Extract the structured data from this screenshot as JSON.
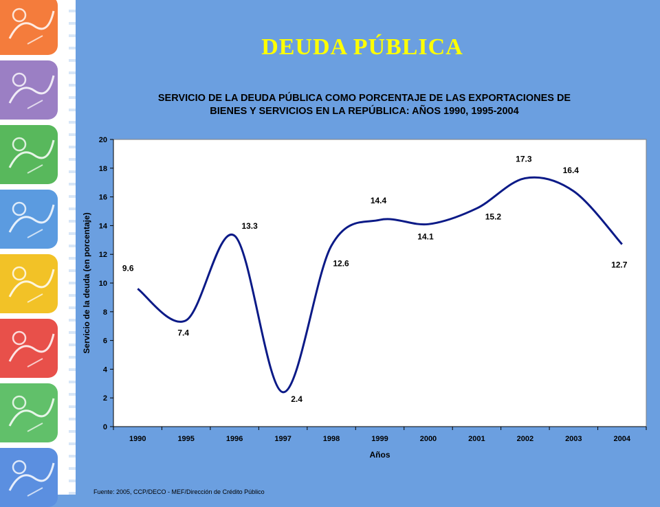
{
  "slide": {
    "title": "DEUDA PÚBLICA"
  },
  "colors": {
    "background": "#6b9fe0",
    "title": "#ffff00",
    "line": "#0b1a87",
    "tiles": [
      "#f47c3c",
      "#9b7fc4",
      "#58b85c",
      "#5b9be0",
      "#f2c227",
      "#e8504a",
      "#61c06a",
      "#5b8fe0"
    ]
  },
  "chart_data": {
    "type": "line",
    "title": "SERVICIO DE LA DEUDA PÚBLICA COMO PORCENTAJE DE LAS EXPORTACIONES DE BIENES Y SERVICIOS EN LA REPÚBLICA: AÑOS 1990, 1995-2004",
    "title_lines": [
      "SERVICIO DE LA DEUDA PÚBLICA COMO PORCENTAJE DE LAS EXPORTACIONES DE",
      "BIENES Y SERVICIOS EN LA REPÚBLICA: AÑOS 1990, 1995-2004"
    ],
    "xlabel": "Años",
    "ylabel": "Servicio de la deuda (en porcentaje)",
    "categories": [
      "1990",
      "1995",
      "1996",
      "1997",
      "1998",
      "1999",
      "2000",
      "2001",
      "2002",
      "2003",
      "2004"
    ],
    "values": [
      9.6,
      7.4,
      13.3,
      2.4,
      12.6,
      14.4,
      14.1,
      15.2,
      17.3,
      16.4,
      12.7
    ],
    "ylim": [
      0,
      20
    ],
    "yticks": [
      0,
      2,
      4,
      6,
      8,
      10,
      12,
      14,
      16,
      18,
      20
    ],
    "smooth": true,
    "grid": false,
    "legend": "none"
  },
  "footer": {
    "source": "Fuente: 2005, CCP/DECO - MEF/Dirección de Crédito Público"
  }
}
